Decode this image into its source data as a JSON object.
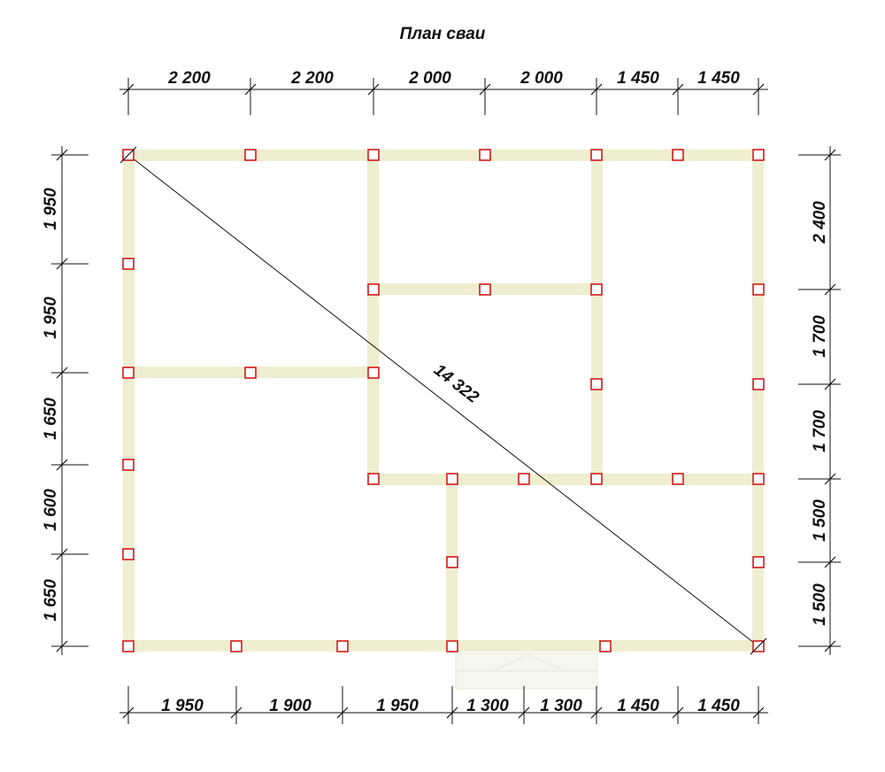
{
  "title": "План сваи",
  "dimensions": {
    "top": [
      "2 200",
      "2 200",
      "2 000",
      "2 000",
      "1 450",
      "1 450"
    ],
    "bottom": [
      "1 950",
      "1 900",
      "1 950",
      "1 300",
      "1 300",
      "1 450",
      "1 450"
    ],
    "left": [
      "1 950",
      "1 950",
      "1 650",
      "1 600",
      "1 650"
    ],
    "right": [
      "2 400",
      "1 700",
      "1 700",
      "1 500",
      "1 500"
    ]
  },
  "diagonal_label": "14 322",
  "colors": {
    "beam": "#efeed0",
    "pile_stroke": "#d21a1a",
    "line": "#111111"
  }
}
